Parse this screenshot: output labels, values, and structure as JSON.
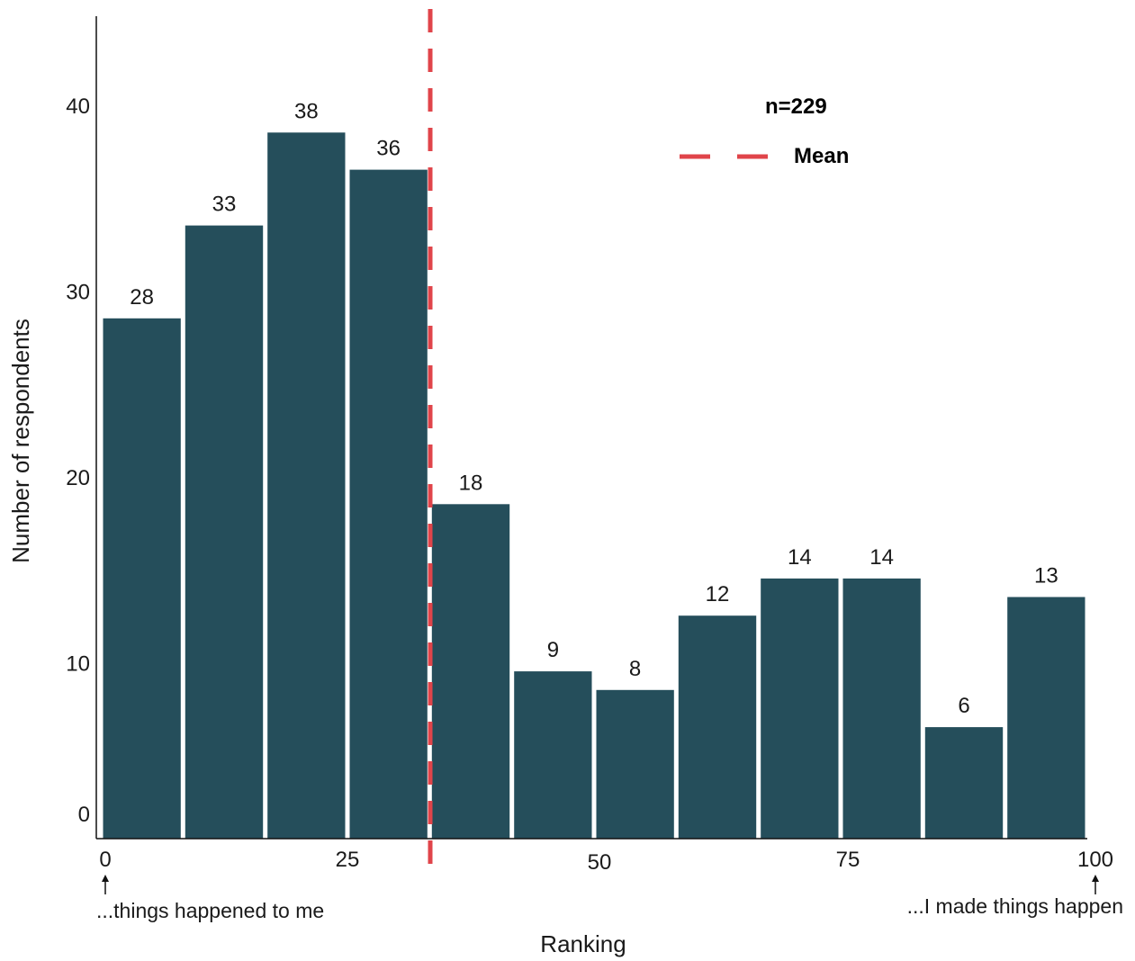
{
  "chart_data": {
    "type": "bar",
    "title": "",
    "xlabel": "Ranking",
    "ylabel": "Number of respondents",
    "bar_color": "#254e5b",
    "mean_line_color": "#e0444a",
    "bins": [
      {
        "x_start": 0,
        "x_end": 8.33,
        "value": 28
      },
      {
        "x_start": 8.33,
        "x_end": 16.67,
        "value": 33
      },
      {
        "x_start": 16.67,
        "x_end": 25,
        "value": 38
      },
      {
        "x_start": 25,
        "x_end": 33.33,
        "value": 36
      },
      {
        "x_start": 33.33,
        "x_end": 41.67,
        "value": 18
      },
      {
        "x_start": 41.67,
        "x_end": 50,
        "value": 9
      },
      {
        "x_start": 50,
        "x_end": 58.33,
        "value": 8
      },
      {
        "x_start": 58.33,
        "x_end": 66.67,
        "value": 12
      },
      {
        "x_start": 66.67,
        "x_end": 75,
        "value": 14
      },
      {
        "x_start": 75,
        "x_end": 83.33,
        "value": 14
      },
      {
        "x_start": 83.33,
        "x_end": 91.67,
        "value": 6
      },
      {
        "x_start": 91.67,
        "x_end": 100,
        "value": 13
      }
    ],
    "xlim": [
      0,
      100
    ],
    "ylim": [
      0,
      44
    ],
    "x_ticks": [
      "0",
      "25",
      "50",
      "75",
      "100"
    ],
    "y_ticks": [
      "0",
      "10",
      "20",
      "30",
      "40"
    ],
    "mean": 33.3,
    "legend": {
      "n_label": "n=229",
      "mean_label": "Mean",
      "position": "top-right"
    },
    "annotations": {
      "left_end": "...things happened to me",
      "right_end": "...I made things happen"
    }
  }
}
